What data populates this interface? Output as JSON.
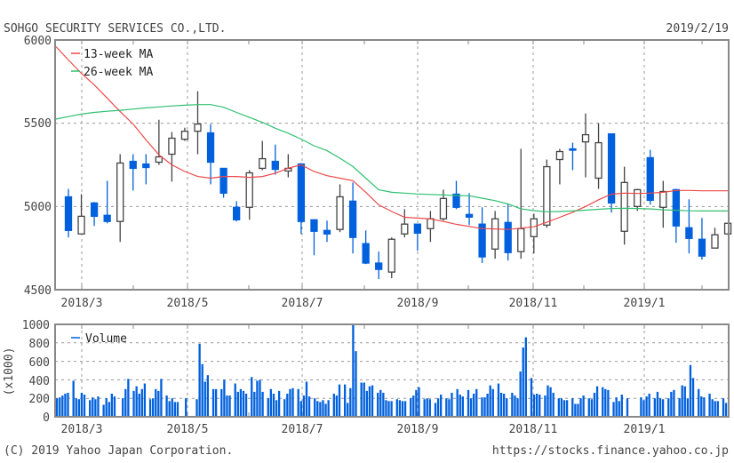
{
  "header": {
    "title": "SOHGO SECURITY SERVICES CO.,LTD.",
    "date": "2019/2/19"
  },
  "footer": {
    "copyright": "(C) 2019 Yahoo Japan Corporation.",
    "url": "https://stocks.finance.yahoo.co.jp"
  },
  "colors": {
    "up_fill": "#ffffff",
    "up_stroke": "#444444",
    "down": "#0060dd",
    "ma13": "#f04848",
    "ma26": "#30c070",
    "volume": "#0060dd"
  },
  "chart_data": [
    {
      "type": "candlestick",
      "title": "SOHGO SECURITY SERVICES CO.,LTD.",
      "ylim": [
        4500,
        6000
      ],
      "yticks": [
        "6000",
        "5500",
        "5000",
        "4500"
      ],
      "xticks": [
        "2018/3",
        "2018/5",
        "2018/7",
        "2018/9",
        "2018/11",
        "2019/1"
      ],
      "grid": true,
      "legend": {
        "placement": "top-left",
        "entries": [
          "13-week MA",
          "26-week MA"
        ]
      },
      "ohlc_fields": [
        "open",
        "high",
        "low",
        "close"
      ],
      "candles": [
        [
          5058,
          5106,
          4814,
          4856
        ],
        [
          4835,
          5074,
          4835,
          4941
        ],
        [
          5021,
          5027,
          4883,
          4941
        ],
        [
          4947,
          5154,
          4899,
          4910
        ],
        [
          4910,
          5314,
          4787,
          5261
        ],
        [
          5271,
          5314,
          5096,
          5229
        ],
        [
          5255,
          5314,
          5133,
          5234
        ],
        [
          5266,
          5521,
          5250,
          5298
        ],
        [
          5314,
          5447,
          5149,
          5410
        ],
        [
          5404,
          5473,
          5394,
          5452
        ],
        [
          5452,
          5692,
          5314,
          5495
        ],
        [
          5442,
          5495,
          5133,
          5266
        ],
        [
          5229,
          5229,
          5053,
          5080
        ],
        [
          4995,
          5032,
          4910,
          4920
        ],
        [
          4995,
          5218,
          4920,
          5202
        ],
        [
          5229,
          5394,
          5218,
          5287
        ],
        [
          5271,
          5372,
          5191,
          5223
        ],
        [
          5213,
          5314,
          5175,
          5229
        ],
        [
          5255,
          5261,
          4835,
          4910
        ],
        [
          4920,
          4920,
          4707,
          4851
        ],
        [
          4856,
          4915,
          4787,
          4835
        ],
        [
          4862,
          5133,
          4846,
          5058
        ],
        [
          5032,
          5144,
          4718,
          4814
        ],
        [
          4777,
          4856,
          4654,
          4660
        ],
        [
          4660,
          4729,
          4564,
          4622
        ],
        [
          4606,
          4814,
          4569,
          4803
        ],
        [
          4835,
          4984,
          4814,
          4894
        ],
        [
          4894,
          4894,
          4734,
          4840
        ],
        [
          4867,
          4973,
          4787,
          4926
        ],
        [
          4926,
          5101,
          4915,
          5048
        ],
        [
          5074,
          5154,
          4984,
          4995
        ],
        [
          4952,
          5080,
          4888,
          4936
        ],
        [
          4894,
          4995,
          4660,
          4697
        ],
        [
          4744,
          4973,
          4686,
          4926
        ],
        [
          4904,
          5016,
          4675,
          4723
        ],
        [
          4729,
          5346,
          4686,
          4867
        ],
        [
          4819,
          4957,
          4718,
          4926
        ],
        [
          4888,
          5282,
          4872,
          5239
        ],
        [
          5282,
          5346,
          5133,
          5330
        ],
        [
          5346,
          5383,
          5218,
          5340
        ],
        [
          5388,
          5559,
          5175,
          5431
        ],
        [
          5170,
          5500,
          5106,
          5383
        ],
        [
          5436,
          5436,
          4963,
          5021
        ],
        [
          4851,
          5239,
          4771,
          5144
        ],
        [
          5000,
          5106,
          4973,
          5101
        ],
        [
          5293,
          5340,
          5011,
          5037
        ],
        [
          4995,
          5154,
          4872,
          5090
        ],
        [
          5101,
          5106,
          4782,
          4883
        ],
        [
          4872,
          5043,
          4718,
          4808
        ],
        [
          4803,
          4931,
          4681,
          4702
        ],
        [
          4750,
          4872,
          4750,
          4830
        ],
        [
          4835,
          4899,
          4830,
          4899
        ]
      ],
      "series": [
        {
          "name": "13-week MA",
          "values": [
            5880,
            5800,
            5730,
            5650,
            5570,
            5495,
            5400,
            5310,
            5250,
            5210,
            5180,
            5170,
            5180,
            5180,
            5175,
            5180,
            5200,
            5230,
            5250,
            5210,
            5185,
            5170,
            5155,
            5085,
            5010,
            4970,
            4935,
            4930,
            4925,
            4910,
            4893,
            4880,
            4867,
            4865,
            4862,
            4870,
            4878,
            4905,
            4935,
            4965,
            5000,
            5040,
            5074,
            5080,
            5078,
            5080,
            5085,
            5096,
            5096,
            5094,
            5094,
            5094
          ]
        },
        {
          "name": "26-week MA",
          "values": [
            5540,
            5555,
            5565,
            5572,
            5578,
            5585,
            5592,
            5598,
            5604,
            5608,
            5612,
            5612,
            5596,
            5565,
            5535,
            5505,
            5470,
            5440,
            5405,
            5365,
            5335,
            5290,
            5240,
            5170,
            5100,
            5085,
            5080,
            5075,
            5072,
            5069,
            5066,
            5064,
            5050,
            5035,
            5015,
            4985,
            4975,
            4968,
            4970,
            4973,
            4978,
            4983,
            4988,
            4989,
            4988,
            4985,
            4980,
            4977,
            4974,
            4973,
            4973,
            4973
          ]
        }
      ]
    },
    {
      "type": "bar",
      "ylabel": "(x1000)",
      "ylim": [
        0,
        1000
      ],
      "yticks": [
        "1000",
        "800",
        "600",
        "400",
        "200",
        "0"
      ],
      "xticks": [
        "2018/3",
        "2018/5",
        "2018/7",
        "2018/9",
        "2018/11",
        "2019/1"
      ],
      "grid": true,
      "legend": {
        "placement": "top-left",
        "entries": [
          "Volume"
        ]
      },
      "series": [
        {
          "name": "Volume",
          "values": [
            200,
            210,
            230,
            250,
            260,
            0,
            390,
            200,
            190,
            260,
            240,
            0,
            180,
            210,
            190,
            220,
            0,
            130,
            200,
            160,
            250,
            220,
            0,
            0,
            200,
            300,
            410,
            0,
            280,
            330,
            250,
            300,
            360,
            0,
            190,
            200,
            300,
            280,
            410,
            0,
            230,
            170,
            200,
            160,
            160,
            0,
            0,
            200,
            0,
            0,
            0,
            190,
            790,
            570,
            380,
            450,
            0,
            300,
            300,
            0,
            300,
            400,
            230,
            230,
            0,
            360,
            270,
            300,
            280,
            250,
            0,
            430,
            270,
            390,
            400,
            270,
            0,
            200,
            300,
            250,
            180,
            280,
            0,
            190,
            250,
            300,
            310,
            0,
            300,
            170,
            230,
            380,
            220,
            0,
            200,
            170,
            160,
            180,
            140,
            180,
            0,
            250,
            230,
            350,
            0,
            350,
            150,
            310,
            1000,
            710,
            0,
            370,
            370,
            280,
            330,
            340,
            0,
            260,
            290,
            260,
            180,
            170,
            170,
            0,
            190,
            180,
            170,
            170,
            0,
            200,
            230,
            290,
            320,
            0,
            190,
            200,
            190,
            0,
            150,
            200,
            240,
            0,
            200,
            190,
            260,
            0,
            300,
            240,
            220,
            0,
            290,
            200,
            250,
            300,
            0,
            210,
            210,
            250,
            340,
            300,
            0,
            360,
            260,
            250,
            200,
            0,
            260,
            230,
            200,
            490,
            750,
            860,
            0,
            420,
            240,
            250,
            240,
            0,
            230,
            340,
            320,
            260,
            0,
            200,
            200,
            180,
            180,
            0,
            200,
            140,
            140,
            200,
            230,
            0,
            200,
            190,
            260,
            330,
            0,
            320,
            300,
            290,
            0,
            160,
            210,
            170,
            240,
            0,
            200,
            0,
            0,
            0,
            0,
            210,
            180,
            220,
            250,
            0,
            200,
            270,
            200,
            190,
            0,
            200,
            270,
            290,
            0,
            200,
            340,
            330,
            200,
            560,
            420,
            0,
            300,
            220,
            210,
            0,
            250,
            190,
            170,
            170,
            0,
            200,
            150
          ]
        }
      ]
    }
  ]
}
